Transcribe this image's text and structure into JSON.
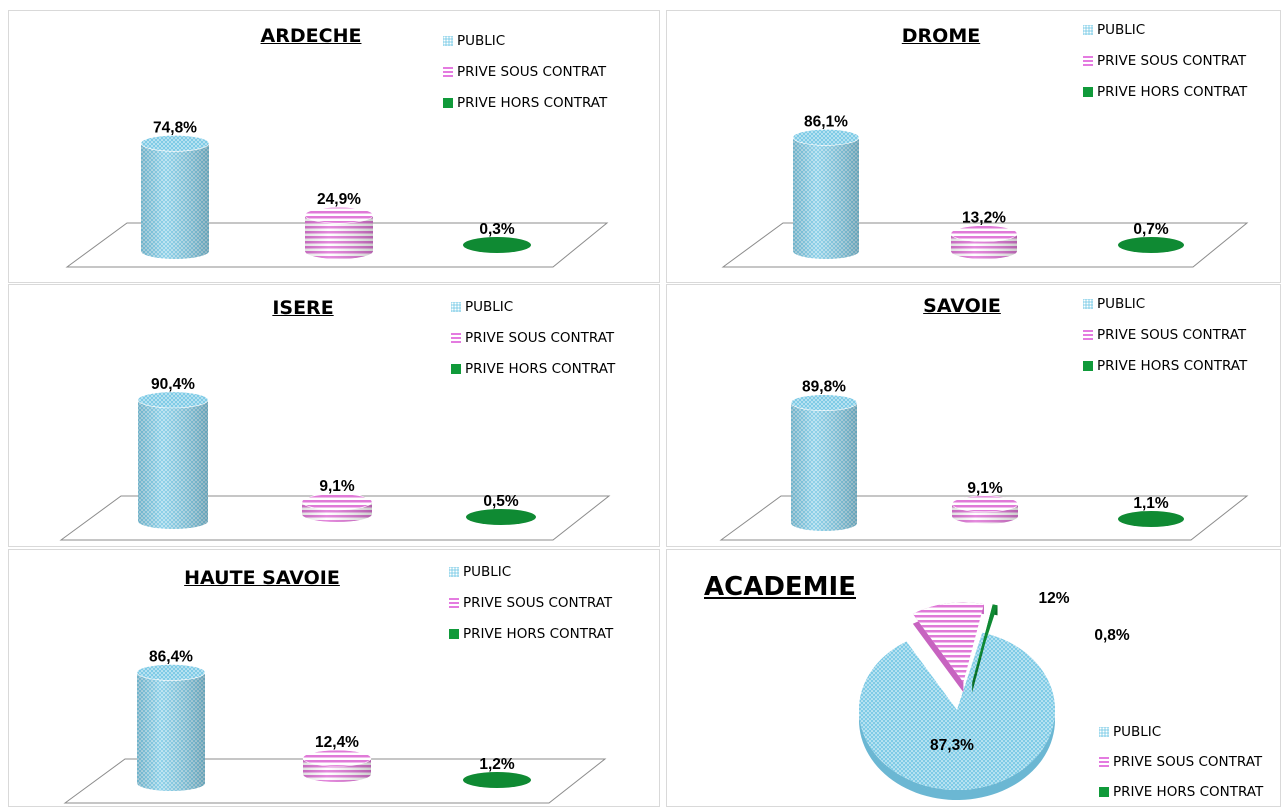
{
  "legend": [
    "PUBLIC",
    "PRIVE SOUS CONTRAT",
    "PRIVE HORS CONTRAT"
  ],
  "colors": {
    "public": "#7fcbe6",
    "prive_sous": "#e07ad8",
    "prive_hors": "#0f8a33"
  },
  "chart_data": [
    {
      "type": "bar",
      "title": "ARDECHE",
      "categories": [
        "PUBLIC",
        "PRIVE SOUS CONTRAT",
        "PRIVE HORS CONTRAT"
      ],
      "values": [
        74.8,
        24.9,
        0.3
      ],
      "labels": [
        "74,8%",
        "24,9%",
        "0,3%"
      ]
    },
    {
      "type": "bar",
      "title": "DROME",
      "categories": [
        "PUBLIC",
        "PRIVE SOUS CONTRAT",
        "PRIVE HORS CONTRAT"
      ],
      "values": [
        86.1,
        13.2,
        0.7
      ],
      "labels": [
        "86,1%",
        "13,2%",
        "0,7%"
      ]
    },
    {
      "type": "bar",
      "title": "ISERE",
      "categories": [
        "PUBLIC",
        "PRIVE SOUS CONTRAT",
        "PRIVE HORS CONTRAT"
      ],
      "values": [
        90.4,
        9.1,
        0.5
      ],
      "labels": [
        "90,4%",
        "9,1%",
        "0,5%"
      ]
    },
    {
      "type": "bar",
      "title": "SAVOIE",
      "categories": [
        "PUBLIC",
        "PRIVE SOUS CONTRAT",
        "PRIVE HORS CONTRAT"
      ],
      "values": [
        89.8,
        9.1,
        1.1
      ],
      "labels": [
        "89,8%",
        "9,1%",
        "1,1%"
      ]
    },
    {
      "type": "bar",
      "title": "HAUTE SAVOIE",
      "categories": [
        "PUBLIC",
        "PRIVE SOUS CONTRAT",
        "PRIVE HORS CONTRAT"
      ],
      "values": [
        86.4,
        12.4,
        1.2
      ],
      "labels": [
        "86,4%",
        "12,4%",
        "1,2%"
      ]
    },
    {
      "type": "pie",
      "title": "ACADEMIE",
      "categories": [
        "PUBLIC",
        "PRIVE SOUS CONTRAT",
        "PRIVE HORS CONTRAT"
      ],
      "values": [
        87.3,
        12,
        0.8
      ],
      "labels": [
        "87,3%",
        "12%",
        "0,8%"
      ]
    }
  ]
}
